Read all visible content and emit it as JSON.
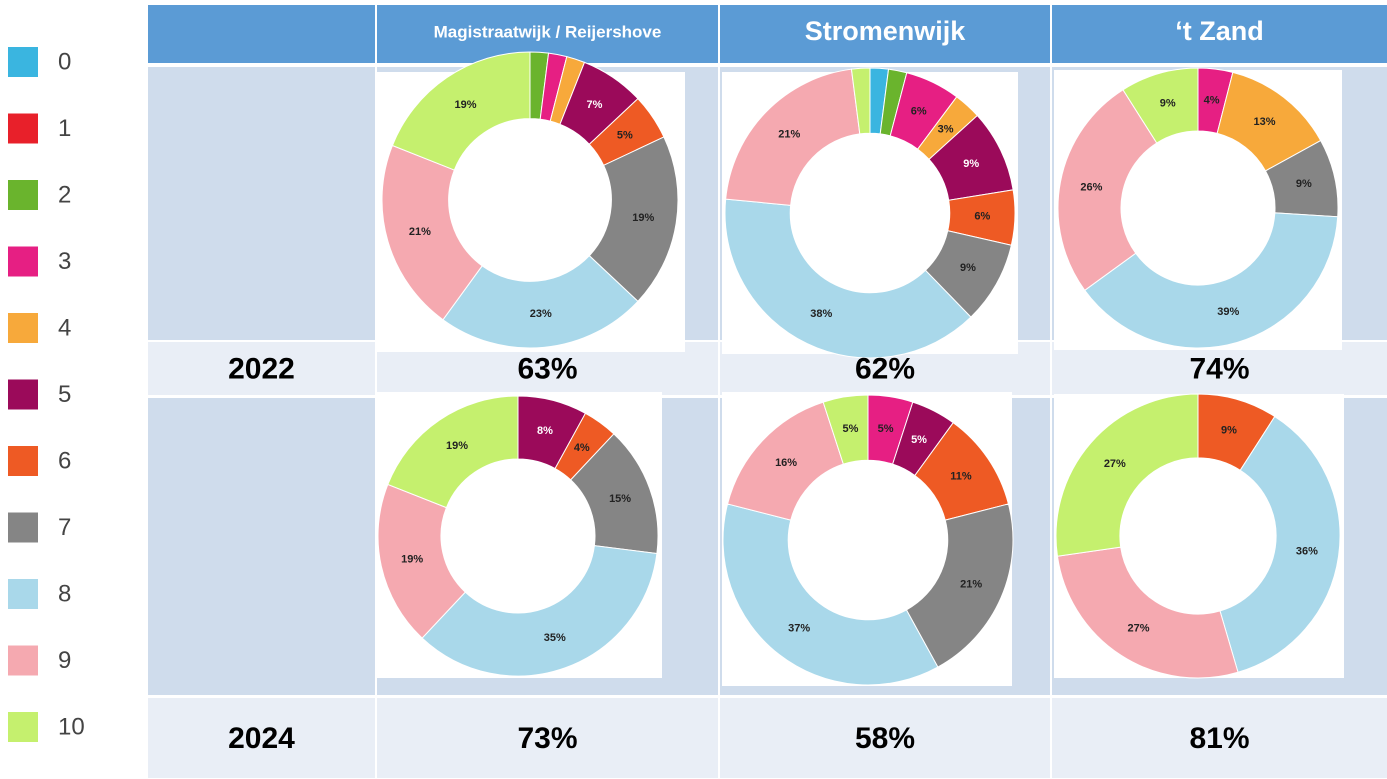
{
  "legend": {
    "items": [
      {
        "label": "0",
        "color": "#3ab5e0"
      },
      {
        "label": "1",
        "color": "#e8202a"
      },
      {
        "label": "2",
        "color": "#6ab42d"
      },
      {
        "label": "3",
        "color": "#e61f83"
      },
      {
        "label": "4",
        "color": "#f7a93b"
      },
      {
        "label": "5",
        "color": "#9b0a5a"
      },
      {
        "label": "6",
        "color": "#ee5a24"
      },
      {
        "label": "7",
        "color": "#858585"
      },
      {
        "label": "8",
        "color": "#a9d8ea"
      },
      {
        "label": "9",
        "color": "#f5a9b0"
      },
      {
        "label": "10",
        "color": "#c5f06e"
      }
    ]
  },
  "table": {
    "headers": [
      "Magistraatwijk / Reijershove",
      "Stromenwijk",
      "‘t Zand"
    ],
    "rows": [
      {
        "year": "2022",
        "cells": [
          {
            "type": "pie",
            "values": [
              2,
              2,
              2,
              7,
              5,
              19,
              23,
              21,
              19
            ],
            "value_labels": [
              null,
              null,
              null,
              "7%",
              "5%",
              "19%",
              "23%",
              "21%",
              "19%"
            ],
            "colors": [
              "#6ab42d",
              "#e61f83",
              "#f7a93b",
              "#9b0a5a",
              "#ee5a24",
              "#858585",
              "#a9d8ea",
              "#f5a9b0",
              "#c5f06e"
            ],
            "score": 63,
            "score_label": "63%"
          },
          {
            "type": "pie",
            "values": [
              2,
              2,
              6,
              3,
              9,
              6,
              9,
              38,
              21,
              2
            ],
            "value_labels": [
              null,
              null,
              "6%",
              "3%",
              "9%",
              "6%",
              "9%",
              "38%",
              "21%",
              null
            ],
            "colors": [
              "#3ab5e0",
              "#6ab42d",
              "#e61f83",
              "#f7a93b",
              "#9b0a5a",
              "#ee5a24",
              "#858585",
              "#a9d8ea",
              "#f5a9b0",
              "#c5f06e"
            ],
            "score": 62,
            "score_label": "62%"
          },
          {
            "type": "pie",
            "values": [
              4,
              13,
              9,
              39,
              26,
              9
            ],
            "value_labels": [
              "4%",
              "13%",
              "9%",
              "39%",
              "26%",
              "9%"
            ],
            "colors": [
              "#e61f83",
              "#f7a93b",
              "#858585",
              "#a9d8ea",
              "#f5a9b0",
              "#c5f06e"
            ],
            "score": 74,
            "score_label": "74%"
          }
        ]
      },
      {
        "year": "2024",
        "cells": [
          {
            "type": "pie",
            "values": [
              8,
              4,
              15,
              35,
              19,
              19
            ],
            "value_labels": [
              "8%",
              "4%",
              "15%",
              "35%",
              "19%",
              "19%"
            ],
            "colors": [
              "#9b0a5a",
              "#ee5a24",
              "#858585",
              "#a9d8ea",
              "#f5a9b0",
              "#c5f06e"
            ],
            "score": 73,
            "score_label": "73%"
          },
          {
            "type": "pie",
            "values": [
              5,
              5,
              11,
              21,
              37,
              16,
              5
            ],
            "value_labels": [
              "5%",
              "5%",
              "11%",
              "21%",
              "37%",
              "16%",
              "5%"
            ],
            "colors": [
              "#e61f83",
              "#9b0a5a",
              "#ee5a24",
              "#858585",
              "#a9d8ea",
              "#f5a9b0",
              "#c5f06e"
            ],
            "score": 58,
            "score_label": "58%"
          },
          {
            "type": "pie",
            "values": [
              9,
              36,
              27,
              27
            ],
            "value_labels": [
              "9%",
              "36%",
              "27%",
              "27%"
            ],
            "colors": [
              "#ee5a24",
              "#a9d8ea",
              "#f5a9b0",
              "#c5f06e"
            ],
            "score": 81,
            "score_label": "81%"
          }
        ]
      }
    ]
  }
}
